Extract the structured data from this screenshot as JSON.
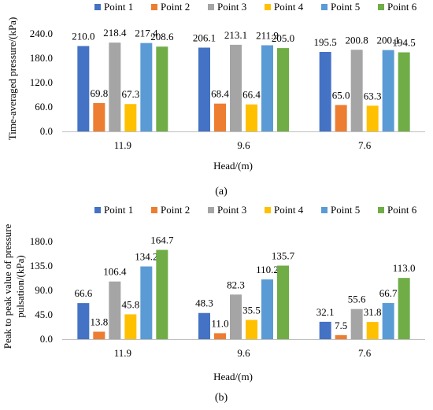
{
  "series_colors": [
    "#4472C4",
    "#ED7D31",
    "#A5A5A5",
    "#FFC000",
    "#5B9BD5",
    "#70AD47"
  ],
  "chart_data": [
    {
      "type": "bar",
      "panel_label": "(a)",
      "xlabel": "Head/(m)",
      "ylabel": "Time-averaged pressure/(kPa)",
      "categories": [
        "11.9",
        "9.6",
        "7.6"
      ],
      "ylim": [
        0,
        240
      ],
      "yticks": [
        "0.0",
        "60.0",
        "120.0",
        "180.0",
        "240.0"
      ],
      "ytick_values": [
        0,
        60,
        120,
        180,
        240
      ],
      "legend_position": "top",
      "grid": false,
      "series": [
        {
          "name": "Point 1",
          "values": [
            210.0,
            206.1,
            195.5
          ],
          "labels": [
            "210.0",
            "206.1",
            "195.5"
          ]
        },
        {
          "name": "Point 2",
          "values": [
            69.8,
            68.4,
            65.0
          ],
          "labels": [
            "69.8",
            "68.4",
            "65.0"
          ]
        },
        {
          "name": "Point 3",
          "values": [
            218.4,
            213.1,
            200.8
          ],
          "labels": [
            "218.4",
            "213.1",
            "200.8"
          ]
        },
        {
          "name": "Point 4",
          "values": [
            67.3,
            66.4,
            63.3
          ],
          "labels": [
            "67.3",
            "66.4",
            "63.3"
          ]
        },
        {
          "name": "Point 5",
          "values": [
            217.4,
            211.9,
            200.1
          ],
          "labels": [
            "217.4",
            "211.9",
            "200.1"
          ]
        },
        {
          "name": "Point 6",
          "values": [
            208.6,
            205.0,
            194.5
          ],
          "labels": [
            "208.6",
            "205.0",
            "194.5"
          ]
        }
      ]
    },
    {
      "type": "bar",
      "panel_label": "(b)",
      "xlabel": "Head/(m)",
      "ylabel_lines": [
        "Peak to peak value of pressure",
        "pulsation/(kPa)"
      ],
      "categories": [
        "11.9",
        "9.6",
        "7.6"
      ],
      "ylim": [
        0,
        180
      ],
      "yticks": [
        "0.0",
        "45.0",
        "90.0",
        "135.0",
        "180.0"
      ],
      "ytick_values": [
        0,
        45,
        90,
        135,
        180
      ],
      "legend_position": "top",
      "grid": false,
      "series": [
        {
          "name": "Point 1",
          "values": [
            66.6,
            48.3,
            32.1
          ],
          "labels": [
            "66.6",
            "48.3",
            "32.1"
          ]
        },
        {
          "name": "Point 2",
          "values": [
            13.8,
            11.0,
            7.5
          ],
          "labels": [
            "13.8",
            "11.0",
            "7.5"
          ]
        },
        {
          "name": "Point 3",
          "values": [
            106.4,
            82.3,
            55.6
          ],
          "labels": [
            "106.4",
            "82.3",
            "55.6"
          ]
        },
        {
          "name": "Point 4",
          "values": [
            45.8,
            35.5,
            31.8
          ],
          "labels": [
            "45.8",
            "35.5",
            "31.8"
          ]
        },
        {
          "name": "Point 5",
          "values": [
            134.2,
            110.2,
            66.7
          ],
          "labels": [
            "134.2",
            "110.2",
            "66.7"
          ]
        },
        {
          "name": "Point 6",
          "values": [
            164.7,
            135.7,
            113.0
          ],
          "labels": [
            "164.7",
            "135.7",
            "113.0"
          ]
        }
      ]
    }
  ]
}
